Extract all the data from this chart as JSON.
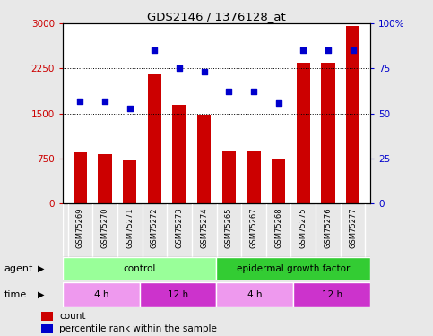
{
  "title": "GDS2146 / 1376128_at",
  "samples": [
    "GSM75269",
    "GSM75270",
    "GSM75271",
    "GSM75272",
    "GSM75273",
    "GSM75274",
    "GSM75265",
    "GSM75267",
    "GSM75268",
    "GSM75275",
    "GSM75276",
    "GSM75277"
  ],
  "counts": [
    850,
    820,
    720,
    2150,
    1650,
    1480,
    870,
    880,
    740,
    2350,
    2350,
    2960
  ],
  "percentile": [
    57,
    57,
    53,
    85,
    75,
    73,
    62,
    62,
    56,
    85,
    85,
    85
  ],
  "ylim_left": [
    0,
    3000
  ],
  "ylim_right": [
    0,
    100
  ],
  "yticks_left": [
    0,
    750,
    1500,
    2250,
    3000
  ],
  "ytick_labels_left": [
    "0",
    "750",
    "1500",
    "2250",
    "3000"
  ],
  "ytick_labels_right": [
    "0",
    "25",
    "50",
    "75",
    "100%"
  ],
  "yticks_right": [
    0,
    25,
    50,
    75,
    100
  ],
  "bar_color": "#cc0000",
  "dot_color": "#0000cc",
  "fig_bg": "#e8e8e8",
  "plot_bg": "#ffffff",
  "label_bg": "#cccccc",
  "agent_groups": [
    {
      "label": "control",
      "start": 0,
      "end": 6,
      "color": "#99ff99"
    },
    {
      "label": "epidermal growth factor",
      "start": 6,
      "end": 12,
      "color": "#33cc33"
    }
  ],
  "time_groups": [
    {
      "label": "4 h",
      "start": 0,
      "end": 3,
      "color": "#ee99ee"
    },
    {
      "label": "12 h",
      "start": 3,
      "end": 6,
      "color": "#cc33cc"
    },
    {
      "label": "4 h",
      "start": 6,
      "end": 9,
      "color": "#ee99ee"
    },
    {
      "label": "12 h",
      "start": 9,
      "end": 12,
      "color": "#cc33cc"
    }
  ],
  "agent_label": "agent",
  "time_label": "time",
  "legend_count": "count",
  "legend_pct": "percentile rank within the sample",
  "bar_width": 0.55
}
